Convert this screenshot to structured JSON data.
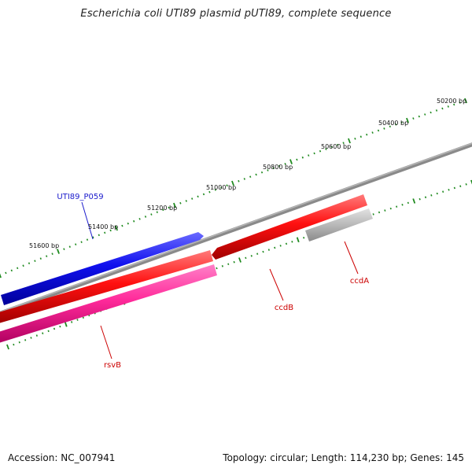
{
  "title": "Escherichia coli UTI89 plasmid pUTI89, complete sequence",
  "footer": {
    "accession": "Accession: NC_007941",
    "stats": "Topology: circular; Length: 114,230 bp; Genes: 145"
  },
  "colors": {
    "tick": "#1f8a1f",
    "label_blue": "#1a1acc",
    "label_red": "#cc0000"
  },
  "scale_labels": [
    "50200 bp",
    "50400 bp",
    "50600 bp",
    "50800 bp",
    "51000 bp",
    "51200 bp",
    "51400 bp",
    "51600 bp"
  ],
  "features": [
    {
      "id": "UTI89_P059",
      "label": "UTI89_P059",
      "color": "#1010ee",
      "label_color": "#1a1acc",
      "strand": "+"
    },
    {
      "id": "ccdB",
      "label": "ccdB",
      "color": "#ff1a1a",
      "label_color": "#cc0000",
      "strand": "-"
    },
    {
      "id": "ccdA",
      "label": "ccdA",
      "color": "#b8b8b8",
      "label_color": "#cc0000",
      "strand": "-"
    },
    {
      "id": "rsvB",
      "label": "rsvB",
      "color": "#ff2a9a",
      "label_color": "#cc0000",
      "strand": "-"
    }
  ]
}
